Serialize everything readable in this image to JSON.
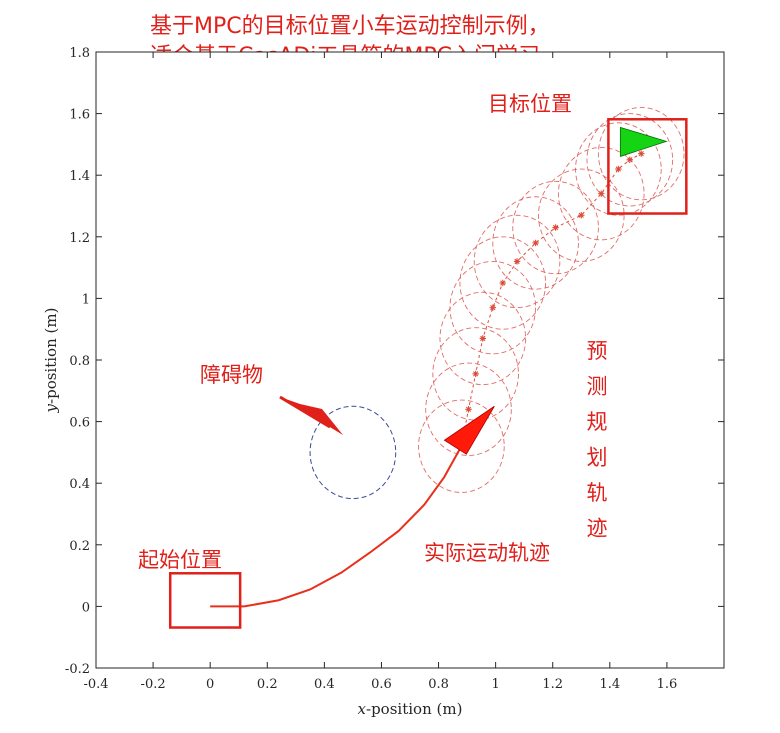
{
  "chart_data": {
    "type": "line",
    "title_lines": [
      "基于MPC的目标位置小车运动控制示例，",
      "适合基于CasADi工具箱的MPC入门学习"
    ],
    "xlabel_var": "x",
    "xlabel_rest": "-position (m)",
    "ylabel_var": "y",
    "ylabel_rest": "-position (m)",
    "xlim": [
      -0.4,
      1.8
    ],
    "ylim": [
      -0.2,
      1.8
    ],
    "xticks": [
      -0.4,
      -0.2,
      0,
      0.2,
      0.4,
      0.6,
      0.8,
      1,
      1.2,
      1.4,
      1.6
    ],
    "yticks": [
      -0.2,
      0,
      0.2,
      0.4,
      0.6,
      0.8,
      1,
      1.2,
      1.4,
      1.6,
      1.8
    ],
    "actual_trajectory": {
      "x": [
        0,
        0.12,
        0.24,
        0.35,
        0.46,
        0.56,
        0.66,
        0.75,
        0.82,
        0.88
      ],
      "y": [
        0,
        0.0,
        0.02,
        0.055,
        0.11,
        0.175,
        0.245,
        0.33,
        0.42,
        0.52
      ]
    },
    "predicted_trajectory": {
      "x": [
        0.88,
        0.905,
        0.93,
        0.955,
        0.99,
        1.025,
        1.075,
        1.14,
        1.21,
        1.3,
        1.37,
        1.43,
        1.47,
        1.51
      ],
      "y": [
        0.52,
        0.64,
        0.755,
        0.87,
        0.97,
        1.05,
        1.12,
        1.18,
        1.23,
        1.27,
        1.34,
        1.42,
        1.45,
        1.47
      ]
    },
    "safety_circle_radius": 0.15,
    "obstacle": {
      "x": 0.5,
      "y": 0.5,
      "r": 0.15
    },
    "start": {
      "x": 0,
      "y": 0,
      "box_half": 0.14
    },
    "goal": {
      "x": 1.5,
      "y": 1.5,
      "box_half": 0.14
    },
    "colors": {
      "trajectory": "#e8301c",
      "prediction": "#dd4b39",
      "circles": "#d9534f",
      "obstacle": "#3b4a9a",
      "robot": "#ff1a0a",
      "goal_robot": "#14d414",
      "annotation": "#e0201a",
      "box": "#e0201a"
    }
  },
  "annotations": {
    "goal_label": "目标位置",
    "obstacle_label": "障碍物",
    "prediction_label": "预测规划轨迹",
    "actual_label": "实际运动轨迹",
    "start_label": "起始位置"
  }
}
